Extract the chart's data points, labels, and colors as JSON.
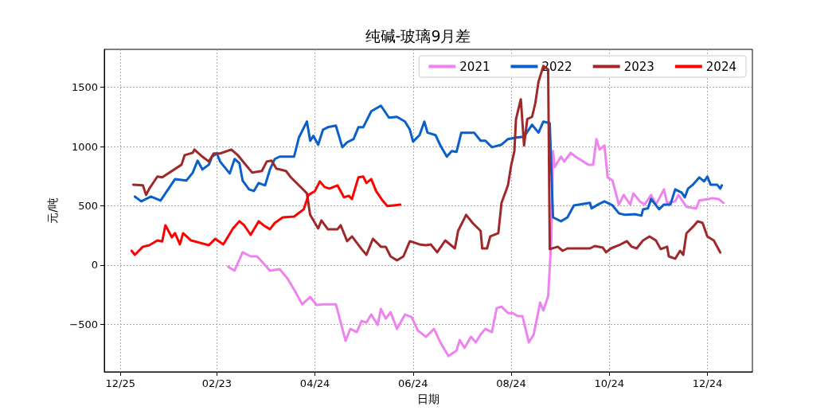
{
  "chart_data": {
    "type": "line",
    "title": "纯碱-玻璃9月差",
    "xlabel": "日期",
    "ylabel": "元/吨",
    "xlim": [
      "2023-12-15",
      "2025-01-21"
    ],
    "ylim": [
      -900,
      1820
    ],
    "xticks": [
      {
        "value": "2023-12-25",
        "label": "12/25"
      },
      {
        "value": "2024-02-23",
        "label": "02/23"
      },
      {
        "value": "2024-04-24",
        "label": "04/24"
      },
      {
        "value": "2024-06-24",
        "label": "06/24"
      },
      {
        "value": "2024-08-24",
        "label": "08/24"
      },
      {
        "value": "2024-10-24",
        "label": "10/24"
      },
      {
        "value": "2024-12-24",
        "label": "12/24"
      }
    ],
    "yticks": [
      -500,
      0,
      500,
      1000,
      1500
    ],
    "grid": true,
    "legend": "top right",
    "line_style": "solid",
    "marker": "none",
    "series": [
      {
        "name": "2021",
        "color": "#ee82ee",
        "x": [
          "2024-03-01",
          "2024-03-05",
          "2024-03-10",
          "2024-03-15",
          "2024-03-19",
          "2024-03-24",
          "2024-03-27",
          "2024-04-02",
          "2024-04-07",
          "2024-04-12",
          "2024-04-16",
          "2024-04-21",
          "2024-04-25",
          "2024-05-01",
          "2024-05-07",
          "2024-05-09",
          "2024-05-13",
          "2024-05-16",
          "2024-05-20",
          "2024-05-23",
          "2024-05-26",
          "2024-05-29",
          "2024-06-02",
          "2024-06-04",
          "2024-06-07",
          "2024-06-10",
          "2024-06-14",
          "2024-06-19",
          "2024-06-23",
          "2024-06-27",
          "2024-07-02",
          "2024-07-07",
          "2024-07-11",
          "2024-07-16",
          "2024-07-21",
          "2024-07-23",
          "2024-07-26",
          "2024-07-30",
          "2024-08-02",
          "2024-08-05",
          "2024-08-08",
          "2024-08-12",
          "2024-08-15",
          "2024-08-18",
          "2024-08-22",
          "2024-08-25",
          "2024-08-28",
          "2024-08-31",
          "2024-09-04",
          "2024-09-07",
          "2024-09-11",
          "2024-09-13",
          "2024-09-16",
          "2024-09-18",
          "2024-09-19",
          "2024-09-20",
          "2024-09-24",
          "2024-09-26",
          "2024-09-30",
          "2024-10-03",
          "2024-10-11",
          "2024-10-14",
          "2024-10-16",
          "2024-10-18",
          "2024-10-21",
          "2024-10-23",
          "2024-10-26",
          "2024-10-30",
          "2024-11-02",
          "2024-11-06",
          "2024-11-08",
          "2024-11-12",
          "2024-11-15",
          "2024-11-19",
          "2024-11-22",
          "2024-11-27",
          "2024-11-29",
          "2024-12-04",
          "2024-12-06",
          "2024-12-11",
          "2024-12-17",
          "2024-12-19",
          "2024-12-25",
          "2024-12-27",
          "2024-12-31",
          "2025-01-03"
        ],
        "values": [
          -13,
          -47,
          108,
          74,
          74,
          0,
          -47,
          -34,
          -114,
          -229,
          -330,
          -269,
          -336,
          -330,
          -330,
          -430,
          -639,
          -538,
          -565,
          -471,
          -484,
          -417,
          -504,
          -370,
          -451,
          -397,
          -538,
          -417,
          -437,
          -552,
          -605,
          -538,
          -652,
          -767,
          -720,
          -632,
          -699,
          -605,
          -652,
          -585,
          -538,
          -565,
          -363,
          -350,
          -404,
          -404,
          -430,
          -430,
          -652,
          -585,
          -316,
          -383,
          -262,
          222,
          962,
          827,
          915,
          874,
          948,
          915,
          847,
          847,
          1063,
          975,
          1009,
          740,
          713,
          511,
          592,
          511,
          605,
          538,
          511,
          592,
          511,
          639,
          525,
          538,
          592,
          491,
          478,
          545,
          558,
          565,
          558,
          525
        ]
      },
      {
        "name": "2022",
        "color": "#0a5fc8",
        "x": [
          "2024-01-03",
          "2024-01-07",
          "2024-01-13",
          "2024-01-19",
          "2024-01-23",
          "2024-01-28",
          "2024-02-04",
          "2024-02-08",
          "2024-02-11",
          "2024-02-14",
          "2024-02-18",
          "2024-02-20",
          "2024-02-23",
          "2024-02-25",
          "2024-03-02",
          "2024-03-05",
          "2024-03-08",
          "2024-03-10",
          "2024-03-14",
          "2024-03-17",
          "2024-03-20",
          "2024-03-24",
          "2024-03-27",
          "2024-03-30",
          "2024-04-02",
          "2024-04-11",
          "2024-04-14",
          "2024-04-19",
          "2024-04-21",
          "2024-04-23",
          "2024-04-26",
          "2024-04-29",
          "2024-05-02",
          "2024-05-07",
          "2024-05-11",
          "2024-05-14",
          "2024-05-18",
          "2024-05-21",
          "2024-05-24",
          "2024-05-29",
          "2024-06-04",
          "2024-06-09",
          "2024-06-14",
          "2024-06-19",
          "2024-06-22",
          "2024-06-24",
          "2024-06-28",
          "2024-07-01",
          "2024-07-03",
          "2024-07-08",
          "2024-07-11",
          "2024-07-15",
          "2024-07-18",
          "2024-07-21",
          "2024-07-24",
          "2024-07-28",
          "2024-08-01",
          "2024-08-05",
          "2024-08-08",
          "2024-08-12",
          "2024-08-18",
          "2024-08-22",
          "2024-08-27",
          "2024-09-01",
          "2024-09-06",
          "2024-09-10",
          "2024-09-13",
          "2024-09-17",
          "2024-09-19",
          "2024-09-24",
          "2024-09-28",
          "2024-10-02",
          "2024-10-12",
          "2024-10-13",
          "2024-10-17",
          "2024-10-21",
          "2024-10-26",
          "2024-10-30",
          "2024-11-03",
          "2024-11-09",
          "2024-11-13",
          "2024-11-14",
          "2024-11-17",
          "2024-11-19",
          "2024-11-24",
          "2024-11-27",
          "2024-12-01",
          "2024-12-04",
          "2024-12-08",
          "2024-12-10",
          "2024-12-12",
          "2024-12-15",
          "2024-12-19",
          "2024-12-22",
          "2024-12-24",
          "2024-12-26",
          "2024-12-30",
          "2025-01-01",
          "2025-01-02"
        ],
        "values": [
          578,
          538,
          578,
          545,
          625,
          726,
          713,
          780,
          881,
          807,
          847,
          915,
          942,
          874,
          773,
          895,
          861,
          713,
          639,
          625,
          693,
          673,
          807,
          895,
          915,
          915,
          1076,
          1211,
          1049,
          1090,
          1016,
          1143,
          1163,
          1177,
          995,
          1036,
          1063,
          1163,
          1163,
          1298,
          1345,
          1244,
          1251,
          1211,
          1143,
          1042,
          1096,
          1211,
          1117,
          1096,
          1009,
          915,
          962,
          955,
          1117,
          1117,
          1117,
          1049,
          1049,
          995,
          1016,
          1063,
          1076,
          1083,
          1184,
          1117,
          1211,
          1197,
          403,
          370,
          403,
          504,
          525,
          478,
          511,
          538,
          504,
          437,
          424,
          430,
          417,
          471,
          478,
          558,
          471,
          511,
          511,
          639,
          612,
          572,
          646,
          679,
          740,
          706,
          747,
          679,
          679,
          646,
          673
        ]
      },
      {
        "name": "2023",
        "color": "#a02828",
        "x": [
          "2024-01-02",
          "2024-01-08",
          "2024-01-10",
          "2024-01-12",
          "2024-01-17",
          "2024-01-20",
          "2024-02-01",
          "2024-02-03",
          "2024-02-08",
          "2024-02-09",
          "2024-02-14",
          "2024-02-18",
          "2024-02-21",
          "2024-02-25",
          "2024-03-03",
          "2024-03-07",
          "2024-03-11",
          "2024-03-16",
          "2024-03-22",
          "2024-03-25",
          "2024-03-28",
          "2024-03-31",
          "2024-04-06",
          "2024-04-09",
          "2024-04-16",
          "2024-04-19",
          "2024-04-21",
          "2024-04-26",
          "2024-04-28",
          "2024-05-02",
          "2024-05-08",
          "2024-05-10",
          "2024-05-14",
          "2024-05-17",
          "2024-05-23",
          "2024-05-26",
          "2024-05-30",
          "2024-06-04",
          "2024-06-07",
          "2024-06-10",
          "2024-06-14",
          "2024-06-18",
          "2024-06-22",
          "2024-06-28",
          "2024-07-02",
          "2024-07-05",
          "2024-07-09",
          "2024-07-14",
          "2024-07-20",
          "2024-07-22",
          "2024-07-27",
          "2024-07-31",
          "2024-08-05",
          "2024-08-06",
          "2024-08-09",
          "2024-08-11",
          "2024-08-16",
          "2024-08-18",
          "2024-08-22",
          "2024-08-24",
          "2024-08-26",
          "2024-08-27",
          "2024-08-30",
          "2024-09-01",
          "2024-09-03",
          "2024-09-06",
          "2024-09-08",
          "2024-09-10",
          "2024-09-13",
          "2024-09-16",
          "2024-09-17",
          "2024-09-22",
          "2024-09-25",
          "2024-09-28",
          "2024-10-12",
          "2024-10-15",
          "2024-10-20",
          "2024-10-22",
          "2024-10-25",
          "2024-10-30",
          "2024-11-04",
          "2024-11-07",
          "2024-11-10",
          "2024-11-14",
          "2024-11-18",
          "2024-11-22",
          "2024-11-25",
          "2024-11-29",
          "2024-11-30",
          "2024-12-04",
          "2024-12-07",
          "2024-12-09",
          "2024-12-11",
          "2024-12-15",
          "2024-12-18",
          "2024-12-21",
          "2024-12-24",
          "2024-12-28",
          "2025-01-01"
        ],
        "values": [
          679,
          673,
          592,
          646,
          747,
          740,
          847,
          928,
          948,
          975,
          915,
          874,
          942,
          942,
          975,
          928,
          861,
          780,
          794,
          874,
          881,
          814,
          794,
          740,
          646,
          605,
          424,
          309,
          377,
          303,
          303,
          336,
          202,
          242,
          135,
          87,
          222,
          155,
          155,
          74,
          40,
          74,
          202,
          175,
          168,
          175,
          108,
          208,
          141,
          289,
          424,
          356,
          289,
          141,
          141,
          242,
          269,
          525,
          673,
          841,
          962,
          1231,
          1399,
          1009,
          1231,
          1251,
          1365,
          1547,
          1680,
          1650,
          135,
          155,
          121,
          141,
          141,
          161,
          148,
          108,
          141,
          168,
          202,
          155,
          141,
          208,
          242,
          208,
          135,
          155,
          74,
          54,
          121,
          87,
          269,
          323,
          370,
          356,
          242,
          208,
          108
        ]
      },
      {
        "name": "2024",
        "color": "#ff0000",
        "x": [
          "2024-01-01",
          "2024-01-03",
          "2024-01-08",
          "2024-01-12",
          "2024-01-17",
          "2024-01-20",
          "2024-01-22",
          "2024-01-26",
          "2024-01-28",
          "2024-01-31",
          "2024-02-02",
          "2024-02-07",
          "2024-02-18",
          "2024-02-22",
          "2024-02-27",
          "2024-03-04",
          "2024-03-08",
          "2024-03-11",
          "2024-03-15",
          "2024-03-20",
          "2024-03-23",
          "2024-03-27",
          "2024-03-30",
          "2024-04-04",
          "2024-04-11",
          "2024-04-13",
          "2024-04-17",
          "2024-04-20",
          "2024-04-24",
          "2024-04-27",
          "2024-04-30",
          "2024-05-03",
          "2024-05-08",
          "2024-05-12",
          "2024-05-15",
          "2024-05-17",
          "2024-05-21",
          "2024-05-24",
          "2024-05-26",
          "2024-05-29",
          "2024-06-01",
          "2024-06-05",
          "2024-06-08",
          "2024-06-12",
          "2024-06-16"
        ],
        "values": [
          121,
          87,
          155,
          168,
          208,
          200,
          336,
          235,
          270,
          175,
          269,
          208,
          168,
          222,
          175,
          309,
          370,
          336,
          255,
          370,
          336,
          303,
          356,
          403,
          410,
          430,
          471,
          592,
          625,
          706,
          659,
          645,
          673,
          572,
          585,
          558,
          740,
          747,
          693,
          726,
          625,
          545,
          498,
          504,
          511
        ]
      }
    ]
  }
}
